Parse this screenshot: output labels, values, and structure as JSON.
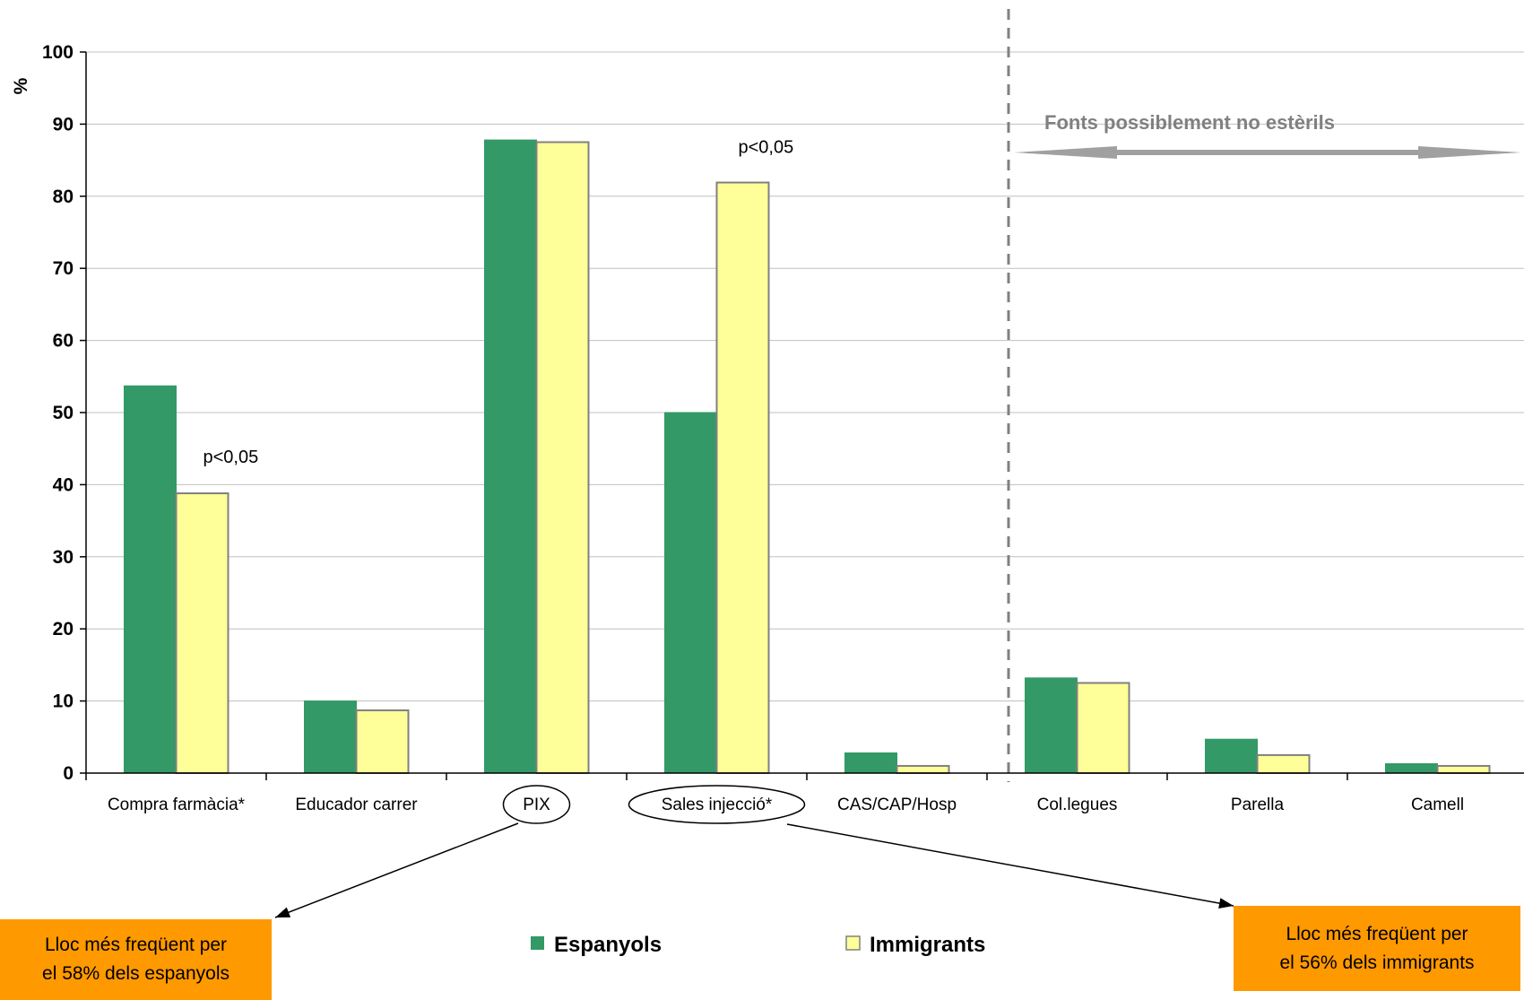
{
  "chart_data": {
    "type": "bar",
    "ylabel": "%",
    "ylim": [
      0,
      100
    ],
    "yticks": [
      0,
      10,
      20,
      30,
      40,
      50,
      60,
      70,
      80,
      90,
      100
    ],
    "grid": true,
    "categories": [
      "Compra farmàcia*",
      "Educador carrer",
      "PIX",
      "Sales injecció*",
      "CAS/CAP/Hosp",
      "Col.legues",
      "Parella",
      "Camell"
    ],
    "series": [
      {
        "name": "Espanyols",
        "color": "#339966",
        "values": [
          53.7,
          10.0,
          87.8,
          50.0,
          2.8,
          13.2,
          4.7,
          1.3
        ]
      },
      {
        "name": "Immigrants",
        "color": "#ffff99",
        "values": [
          38.8,
          8.7,
          87.5,
          81.9,
          1.0,
          12.5,
          2.5,
          1.0
        ]
      }
    ],
    "annotations": {
      "pvalue_1": "p<0,05",
      "pvalue_2": "p<0,05"
    },
    "region": {
      "label": "Fonts possiblement no estèrils",
      "from_category": "Col.legues",
      "to_category": "Camell"
    },
    "legend": {
      "placement": "bottom-center"
    }
  },
  "callouts": {
    "left": {
      "line1": "Lloc més freqüent per",
      "line2": "el 58% dels espanyols"
    },
    "right": {
      "line1": "Lloc més freqüent per",
      "line2": "el 56% dels immigrants"
    }
  }
}
